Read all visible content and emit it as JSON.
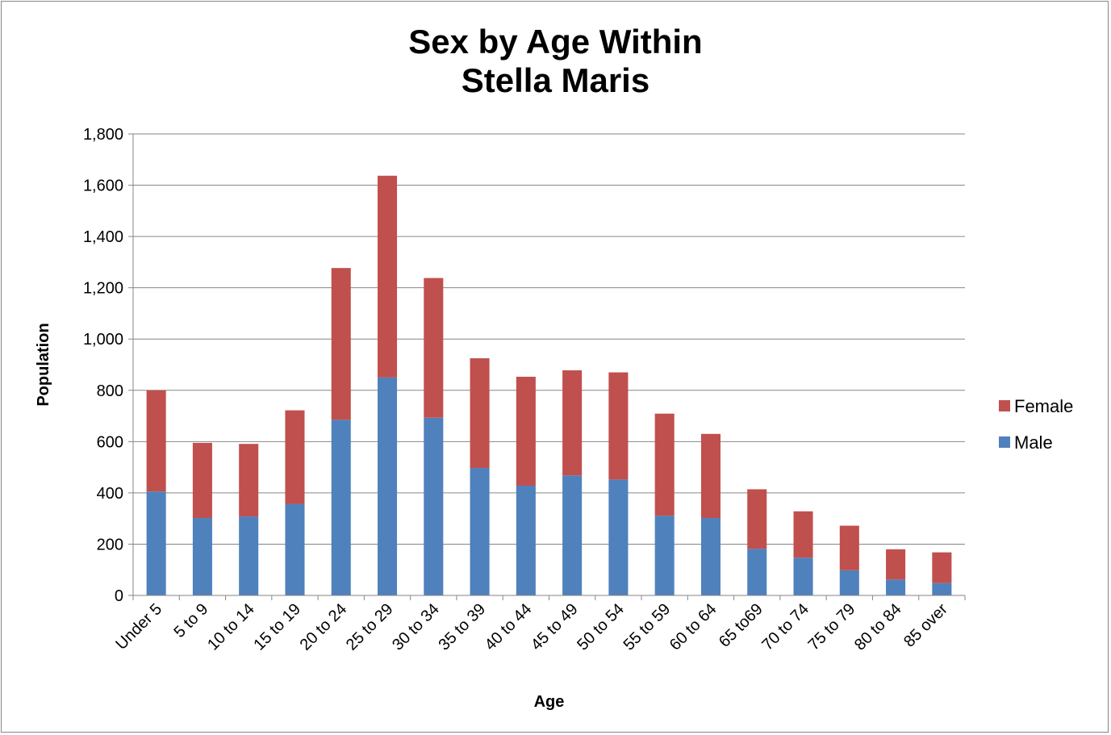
{
  "chart_data": {
    "type": "bar",
    "stacked": true,
    "title_lines": [
      "Sex by Age Within",
      "Stella Maris"
    ],
    "xlabel": "Age",
    "ylabel": "Population",
    "ylim": [
      0,
      1800
    ],
    "yticks": [
      0,
      200,
      400,
      600,
      800,
      1000,
      1200,
      1400,
      1600,
      1800
    ],
    "ytick_labels": [
      "0",
      "200",
      "400",
      "600",
      "800",
      "1,000",
      "1,200",
      "1,400",
      "1,600",
      "1,800"
    ],
    "grid": true,
    "legend_position": "right",
    "categories": [
      "Under 5",
      "5 to 9",
      "10 to 14",
      "15 to 19",
      "20 to 24",
      "25 to 29",
      "30 to 34",
      "35 to 39",
      "40 to 44",
      "45 to 49",
      "50 to 54",
      "55 to 59",
      "60 to 64",
      "65 to69",
      "70 to 74",
      "75 to 79",
      "80 to 84",
      "85 over"
    ],
    "series": [
      {
        "name": "Male",
        "color": "#4F81BD",
        "values": [
          405,
          302,
          308,
          357,
          685,
          850,
          693,
          497,
          428,
          468,
          452,
          311,
          302,
          182,
          147,
          98,
          62,
          48
        ]
      },
      {
        "name": "Female",
        "color": "#C0504D",
        "values": [
          395,
          293,
          283,
          365,
          592,
          787,
          545,
          428,
          425,
          410,
          418,
          398,
          328,
          232,
          181,
          174,
          118,
          120
        ]
      }
    ],
    "legend_order": [
      "Female",
      "Male"
    ]
  }
}
